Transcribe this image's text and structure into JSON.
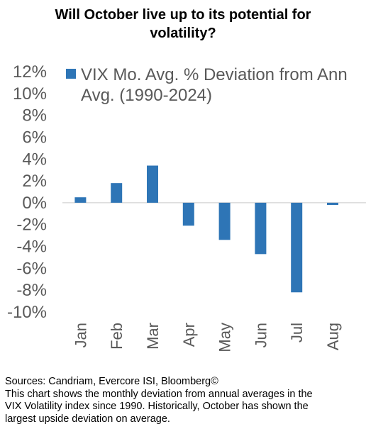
{
  "title": {
    "line1": "Will October live up to its potential for",
    "line2": "volatility?"
  },
  "colors": {
    "bar": "#2e75b6",
    "axis_text": "#595959",
    "zero_line": "#d9d9d9"
  },
  "chart_data": {
    "type": "bar",
    "categories": [
      "Jan",
      "Feb",
      "Mar",
      "Apr",
      "May",
      "Jun",
      "Jul",
      "Aug"
    ],
    "series": [
      {
        "name": "VIX Mo. Avg. % Deviation from Annual Avg. (1990-2024)",
        "values": [
          0.5,
          1.8,
          3.4,
          -2.1,
          -3.4,
          -4.7,
          -8.2,
          -0.2
        ]
      }
    ],
    "legend": {
      "line1": "VIX Mo. Avg. % Deviation from Ann",
      "line2": "Avg. (1990-2024)",
      "position": "top"
    },
    "ylim": [
      -10,
      12
    ],
    "yticks": [
      12,
      10,
      8,
      6,
      4,
      2,
      0,
      -2,
      -4,
      -6,
      -8,
      -10
    ],
    "ytick_labels": [
      "12%",
      "10%",
      "8%",
      "6%",
      "4%",
      "2%",
      "0%",
      "-2%",
      "-4%",
      "-6%",
      "-8%",
      "-10%"
    ],
    "grid": false
  },
  "notes": {
    "source": "Sources: Candriam, Evercore ISI, Bloomberg©",
    "line1": "This chart shows the monthly deviation from annual averages in the",
    "line2": "VIX Volatility index since 1990. Historically, October has shown the",
    "line3": "largest upside deviation on average."
  }
}
